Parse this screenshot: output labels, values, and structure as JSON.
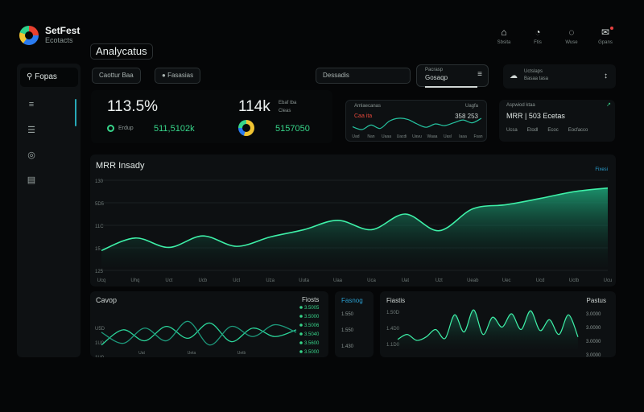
{
  "app": {
    "name": "SetFest",
    "subtitle": "Ecotacts"
  },
  "page": {
    "title": "Analycatus"
  },
  "top_icons": [
    {
      "icon": "lock-icon",
      "glyph": "⌂",
      "label": "Sbsita"
    },
    {
      "icon": "chart-icon",
      "glyph": "◔",
      "label": "Ftis"
    },
    {
      "icon": "bell-icon",
      "glyph": "◌",
      "label": "Wuse"
    },
    {
      "icon": "mail-icon",
      "glyph": "✉",
      "label": "Gpans"
    }
  ],
  "sidebar": {
    "search_label": "Fopas",
    "items": [
      {
        "icon": "building-icon",
        "glyph": "≡"
      },
      {
        "icon": "list-icon",
        "glyph": "☰"
      },
      {
        "icon": "settings-icon",
        "glyph": "◎"
      },
      {
        "icon": "folder-icon",
        "glyph": "▤"
      }
    ]
  },
  "filters": {
    "f1": "Caottur Baa",
    "f2": "Fasasias",
    "dropdown_label": "Dessadis",
    "select_top": "Pacrasp",
    "select_value": "Gosaqp",
    "date_top": "Uctslaps",
    "date_value": "Basaa tasa"
  },
  "kpis": {
    "k1_value": "113.5%",
    "k1_label": "Erdup",
    "k1_sub": "511,5102k",
    "k2_value": "114k",
    "k2_small1": "Ebaf tba",
    "k2_small2": "Cleas",
    "k2_sub": "5157050"
  },
  "mini_chart": {
    "title": "Amlaecanas",
    "top_right": "Uagfa",
    "series_label": "Caa ita",
    "right_value": "358 253",
    "axis": [
      "Uad",
      "Nan",
      "Uaaa",
      "Uacdi",
      "Uavu",
      "Waaa",
      "Uasl",
      "Iaaa",
      "Fsan"
    ]
  },
  "mini_table": {
    "title": "Aspwiod ktaa",
    "value": "MRR | 503 Ecetas",
    "cols": [
      "Ucsa",
      "Etodl",
      "Ecoc",
      "Eocfacco"
    ]
  },
  "main_chart": {
    "title": "MRR Insady",
    "legend": "Fixesi",
    "y_ticks": [
      "130",
      "5D5",
      "11C",
      "15",
      "125"
    ]
  },
  "bottom_left": {
    "title": "Cavop",
    "legend": "Fiosts",
    "y_ticks": [
      "U5D",
      "1U0",
      "1U0"
    ],
    "x_ticks": [
      "Uat",
      "Ueta",
      "Uetb"
    ],
    "values": [
      "3.5005",
      "3.5000",
      "3.5006",
      "3.5040",
      "3.5600",
      "3.5000"
    ]
  },
  "bottom_mid": {
    "title": "Fasnog",
    "values": [
      "1.550",
      "1.550",
      "1.430"
    ]
  },
  "bottom_right": {
    "title": "Fiastis",
    "legend": "Pastus",
    "y_ticks": [
      "1.50D",
      "1.4D0",
      "1.1D0"
    ],
    "values": [
      "3.0000",
      "3.0000",
      "3.0000",
      "3.0000"
    ]
  },
  "chart_data": [
    {
      "type": "area",
      "title": "MRR Insady",
      "x": [
        "Ucq",
        "Uhq",
        "Uct",
        "Ucb",
        "Uct",
        "Uza",
        "Uuta",
        "Uaa",
        "Uca",
        "Uat",
        "Uzt",
        "Ueab",
        "Uec",
        "Ucd",
        "Uctb",
        "Ucu"
      ],
      "y": [
        72,
        96,
        78,
        100,
        80,
        98,
        112,
        130,
        112,
        142,
        110,
        152,
        160,
        172,
        185,
        192
      ],
      "ylim": [
        40,
        210
      ]
    },
    {
      "type": "line",
      "title": "Amlaecanas",
      "series": [
        {
          "name": "Caa ita",
          "values": [
            45,
            40,
            48,
            42,
            55,
            60,
            58,
            50,
            44,
            50,
            47,
            52,
            57,
            52,
            60
          ]
        }
      ]
    },
    {
      "type": "line",
      "title": "Cavop",
      "series": [
        {
          "name": "a",
          "values": [
            40,
            58,
            45,
            62,
            48,
            66,
            44,
            60,
            50,
            58
          ]
        },
        {
          "name": "b",
          "values": [
            55,
            42,
            60,
            45,
            68,
            40,
            62,
            50,
            64,
            55
          ]
        }
      ]
    },
    {
      "type": "line",
      "title": "Fiastis",
      "series": [
        {
          "name": "Pastus",
          "values": [
            20,
            30,
            18,
            25,
            40,
            22,
            70,
            35,
            80,
            30,
            65,
            45,
            72,
            40,
            78,
            38,
            60,
            30,
            70,
            25
          ]
        }
      ]
    }
  ]
}
